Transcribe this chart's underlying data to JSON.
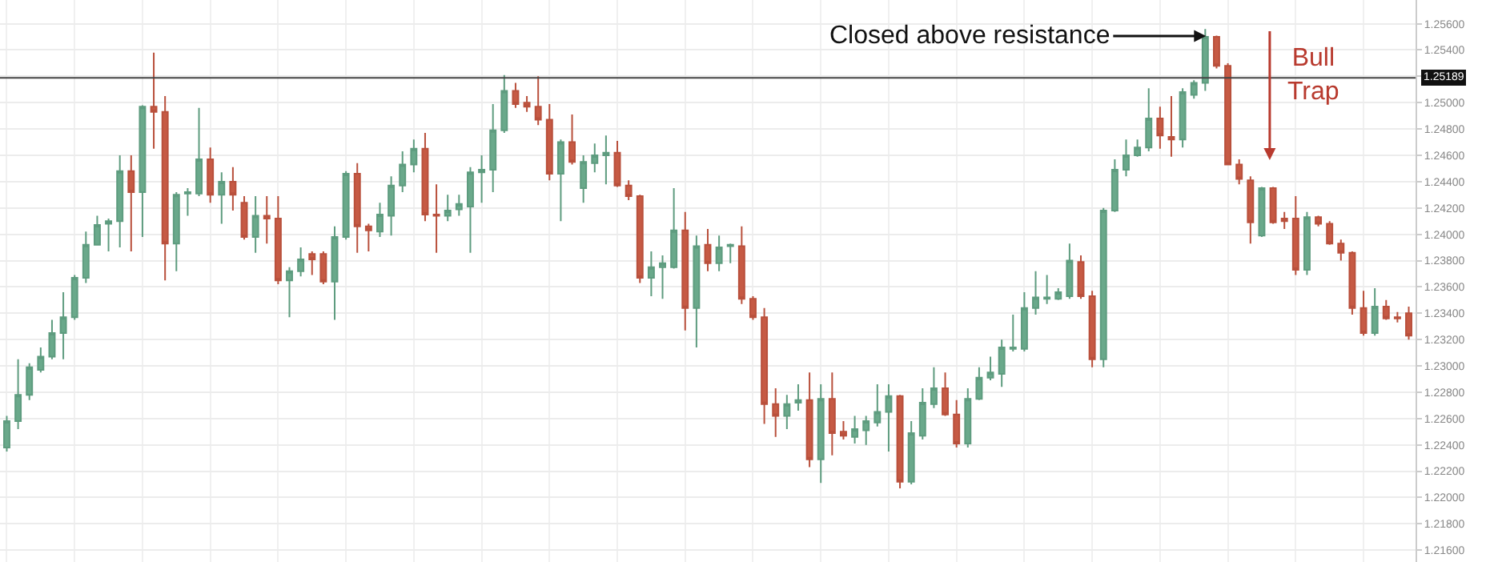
{
  "chart_data": {
    "type": "candlestick",
    "annotations": [
      "Closed above resistance",
      "Bull Trap"
    ],
    "categories": [
      null,
      null,
      null,
      null,
      null,
      null,
      null,
      null,
      null,
      null,
      null,
      null,
      null,
      null,
      null,
      null,
      null,
      null,
      null,
      null,
      null,
      null,
      null,
      null,
      null,
      null,
      null,
      null,
      null,
      null,
      null,
      null,
      null,
      null,
      null,
      null,
      null,
      null,
      null,
      null,
      null,
      null,
      null,
      null,
      null,
      null,
      null,
      null,
      null,
      null,
      null,
      null,
      null,
      null,
      null,
      null,
      null,
      null,
      null,
      null,
      null,
      null,
      null,
      null,
      null,
      null,
      null,
      null,
      null,
      null,
      null,
      null,
      null,
      null,
      null,
      null,
      null,
      null,
      null,
      null,
      null,
      null,
      null,
      null,
      null,
      null,
      null,
      null,
      null,
      null,
      null,
      null,
      null,
      null,
      null,
      null,
      null,
      null,
      null,
      null,
      null,
      null,
      null,
      null,
      null,
      null,
      null,
      null,
      null,
      null,
      null,
      null,
      null,
      null,
      null,
      null,
      null,
      null,
      null,
      null,
      null,
      null,
      null,
      null,
      null
    ],
    "ohlc": [
      [
        1.2238,
        1.2262,
        1.2235,
        1.2258
      ],
      [
        1.2258,
        1.2305,
        1.2252,
        1.2278
      ],
      [
        1.2278,
        1.2302,
        1.2274,
        1.2299
      ],
      [
        1.2297,
        1.2314,
        1.2295,
        1.2307
      ],
      [
        1.2307,
        1.2335,
        1.2305,
        1.2325
      ],
      [
        1.2325,
        1.2356,
        1.2305,
        1.2337
      ],
      [
        1.2337,
        1.2369,
        1.2335,
        1.2367
      ],
      [
        1.2367,
        1.2402,
        1.2363,
        1.2392
      ],
      [
        1.2392,
        1.2414,
        1.2392,
        1.2407
      ],
      [
        1.2408,
        1.2412,
        1.2387,
        1.241
      ],
      [
        1.241,
        1.246,
        1.239,
        1.2448
      ],
      [
        1.2448,
        1.246,
        1.2387,
        1.2432
      ],
      [
        1.2432,
        1.2498,
        1.2398,
        1.2497
      ],
      [
        1.2497,
        1.2538,
        1.2465,
        1.2493
      ],
      [
        1.2493,
        1.2505,
        1.2365,
        1.2393
      ],
      [
        1.2393,
        1.2432,
        1.2372,
        1.243
      ],
      [
        1.2431,
        1.2435,
        1.2414,
        1.2432
      ],
      [
        1.2431,
        1.2496,
        1.2429,
        1.2457
      ],
      [
        1.2457,
        1.2466,
        1.2424,
        1.243
      ],
      [
        1.243,
        1.2447,
        1.2408,
        1.244
      ],
      [
        1.244,
        1.2451,
        1.2418,
        1.243
      ],
      [
        1.2424,
        1.2429,
        1.2396,
        1.2398
      ],
      [
        1.2398,
        1.2429,
        1.2386,
        1.2414
      ],
      [
        1.2414,
        1.2429,
        1.2393,
        1.2412
      ],
      [
        1.2412,
        1.2429,
        1.2362,
        1.2365
      ],
      [
        1.2365,
        1.2375,
        1.2337,
        1.2372
      ],
      [
        1.2372,
        1.239,
        1.2368,
        1.2381
      ],
      [
        1.2385,
        1.2387,
        1.2369,
        1.2381
      ],
      [
        1.2385,
        1.2387,
        1.2362,
        1.2364
      ],
      [
        1.2364,
        1.2406,
        1.2335,
        1.2398
      ],
      [
        1.2398,
        1.2448,
        1.2396,
        1.2446
      ],
      [
        1.2446,
        1.2454,
        1.2386,
        1.2406
      ],
      [
        1.2406,
        1.2408,
        1.2387,
        1.2403
      ],
      [
        1.2402,
        1.2424,
        1.2398,
        1.2415
      ],
      [
        1.2414,
        1.2444,
        1.2399,
        1.2437
      ],
      [
        1.2437,
        1.2463,
        1.2432,
        1.2453
      ],
      [
        1.2453,
        1.2472,
        1.2447,
        1.2465
      ],
      [
        1.2465,
        1.2477,
        1.241,
        1.2415
      ],
      [
        1.2415,
        1.2438,
        1.2386,
        1.2414
      ],
      [
        1.2414,
        1.243,
        1.241,
        1.2418
      ],
      [
        1.2419,
        1.243,
        1.2414,
        1.2423
      ],
      [
        1.2421,
        1.2451,
        1.2386,
        1.2447
      ],
      [
        1.2447,
        1.246,
        1.2424,
        1.2449
      ],
      [
        1.2449,
        1.2499,
        1.2432,
        1.2479
      ],
      [
        1.2479,
        1.2521,
        1.2477,
        1.2509
      ],
      [
        1.2509,
        1.2515,
        1.2496,
        1.2499
      ],
      [
        1.25,
        1.2505,
        1.2493,
        1.2497
      ],
      [
        1.2497,
        1.252,
        1.2483,
        1.2487
      ],
      [
        1.2487,
        1.2499,
        1.2441,
        1.2446
      ],
      [
        1.2446,
        1.2472,
        1.241,
        1.247
      ],
      [
        1.247,
        1.2491,
        1.2453,
        1.2455
      ],
      [
        1.2435,
        1.246,
        1.2424,
        1.2455
      ],
      [
        1.2454,
        1.2469,
        1.2447,
        1.246
      ],
      [
        1.246,
        1.2475,
        1.2438,
        1.2462
      ],
      [
        1.2462,
        1.2471,
        1.2436,
        1.2437
      ],
      [
        1.2437,
        1.2441,
        1.2426,
        1.2429
      ],
      [
        1.2429,
        1.243,
        1.2363,
        1.2367
      ],
      [
        1.2367,
        1.2387,
        1.2353,
        1.2375
      ],
      [
        1.2375,
        1.2384,
        1.2351,
        1.2378
      ],
      [
        1.2375,
        1.2435,
        1.2374,
        1.2403
      ],
      [
        1.2403,
        1.2417,
        1.2327,
        1.2344
      ],
      [
        1.2344,
        1.2399,
        1.2314,
        1.2391
      ],
      [
        1.2392,
        1.2404,
        1.2372,
        1.2378
      ],
      [
        1.2378,
        1.2399,
        1.2372,
        1.239
      ],
      [
        1.2391,
        1.2393,
        1.2378,
        1.2392
      ],
      [
        1.2391,
        1.2406,
        1.2347,
        1.2351
      ],
      [
        1.2351,
        1.2353,
        1.2335,
        1.2337
      ],
      [
        1.2337,
        1.2344,
        1.2256,
        1.2271
      ],
      [
        1.2271,
        1.2283,
        1.2246,
        1.2262
      ],
      [
        1.2262,
        1.2278,
        1.2252,
        1.2271
      ],
      [
        1.2272,
        1.2286,
        1.2266,
        1.2274
      ],
      [
        1.2274,
        1.2295,
        1.2223,
        1.2229
      ],
      [
        1.2229,
        1.2286,
        1.2211,
        1.2275
      ],
      [
        1.2275,
        1.2295,
        1.2232,
        1.2249
      ],
      [
        1.225,
        1.2258,
        1.2244,
        1.2247
      ],
      [
        1.2246,
        1.2262,
        1.2241,
        1.2252
      ],
      [
        1.2251,
        1.2262,
        1.224,
        1.2258
      ],
      [
        1.2257,
        1.2286,
        1.2254,
        1.2265
      ],
      [
        1.2265,
        1.2286,
        1.2235,
        1.2277
      ],
      [
        1.2277,
        1.2278,
        1.2207,
        1.2212
      ],
      [
        1.2212,
        1.2258,
        1.221,
        1.2249
      ],
      [
        1.2247,
        1.2283,
        1.2244,
        1.2272
      ],
      [
        1.2271,
        1.2299,
        1.2268,
        1.2283
      ],
      [
        1.2283,
        1.2295,
        1.2262,
        1.2263
      ],
      [
        1.2263,
        1.2274,
        1.2238,
        1.2241
      ],
      [
        1.2241,
        1.2283,
        1.2238,
        1.2275
      ],
      [
        1.2275,
        1.2299,
        1.2274,
        1.2291
      ],
      [
        1.2291,
        1.2307,
        1.2289,
        1.2295
      ],
      [
        1.2294,
        1.232,
        1.2284,
        1.2314
      ],
      [
        1.2313,
        1.2339,
        1.2311,
        1.2314
      ],
      [
        1.2313,
        1.2356,
        1.2311,
        1.2344
      ],
      [
        1.2344,
        1.2372,
        1.2339,
        1.2352
      ],
      [
        1.2351,
        1.2369,
        1.2347,
        1.2352
      ],
      [
        1.2351,
        1.2359,
        1.235,
        1.2356
      ],
      [
        1.2353,
        1.2393,
        1.2351,
        1.238
      ],
      [
        1.2379,
        1.2384,
        1.2351,
        1.2353
      ],
      [
        1.2353,
        1.2357,
        1.2299,
        1.2305
      ],
      [
        1.2305,
        1.242,
        1.2299,
        1.2418
      ],
      [
        1.2418,
        1.2457,
        1.2417,
        1.2449
      ],
      [
        1.2449,
        1.2472,
        1.2444,
        1.246
      ],
      [
        1.246,
        1.2472,
        1.2459,
        1.2466
      ],
      [
        1.2466,
        1.2511,
        1.2463,
        1.2488
      ],
      [
        1.2488,
        1.2497,
        1.2465,
        1.2475
      ],
      [
        1.2474,
        1.2505,
        1.2459,
        1.2472
      ],
      [
        1.2472,
        1.2511,
        1.2466,
        1.2508
      ],
      [
        1.2506,
        1.2517,
        1.2503,
        1.2515
      ],
      [
        1.2515,
        1.2556,
        1.2509,
        1.255
      ],
      [
        1.255,
        1.2551,
        1.2526,
        1.2528
      ],
      [
        1.2528,
        1.253,
        1.2453,
        1.2453
      ],
      [
        1.2453,
        1.2457,
        1.2438,
        1.2442
      ],
      [
        1.2441,
        1.2444,
        1.2393,
        1.2409
      ],
      [
        1.2399,
        1.2436,
        1.2398,
        1.2435
      ],
      [
        1.2435,
        1.2436,
        1.2408,
        1.2409
      ],
      [
        1.2412,
        1.2417,
        1.2404,
        1.241
      ],
      [
        1.2412,
        1.2429,
        1.2369,
        1.2373
      ],
      [
        1.2373,
        1.2417,
        1.2369,
        1.2413
      ],
      [
        1.2413,
        1.2414,
        1.2406,
        1.2408
      ],
      [
        1.2408,
        1.241,
        1.2392,
        1.2393
      ],
      [
        1.2393,
        1.2396,
        1.238,
        1.2386
      ],
      [
        1.2386,
        1.2387,
        1.2339,
        1.2344
      ],
      [
        1.2344,
        1.2357,
        1.2323,
        1.2325
      ],
      [
        1.2325,
        1.2359,
        1.2323,
        1.2345
      ],
      [
        1.2345,
        1.235,
        1.2335,
        1.2336
      ],
      [
        1.2337,
        1.2341,
        1.2333,
        1.2336
      ],
      [
        1.234,
        1.2345,
        1.232,
        1.2323
      ]
    ],
    "ylim": [
      1.2151,
      1.2578
    ],
    "yticks": [
      {
        "value": 1.216,
        "label": "1.21600"
      },
      {
        "value": 1.218,
        "label": "1.21800"
      },
      {
        "value": 1.22,
        "label": "1.22000"
      },
      {
        "value": 1.222,
        "label": "1.22200"
      },
      {
        "value": 1.224,
        "label": "1.22400"
      },
      {
        "value": 1.226,
        "label": "1.22600"
      },
      {
        "value": 1.228,
        "label": "1.22800"
      },
      {
        "value": 1.23,
        "label": "1.23000"
      },
      {
        "value": 1.232,
        "label": "1.23200"
      },
      {
        "value": 1.234,
        "label": "1.23400"
      },
      {
        "value": 1.236,
        "label": "1.23600"
      },
      {
        "value": 1.238,
        "label": "1.23800"
      },
      {
        "value": 1.24,
        "label": "1.24000"
      },
      {
        "value": 1.242,
        "label": "1.24200"
      },
      {
        "value": 1.244,
        "label": "1.24400"
      },
      {
        "value": 1.246,
        "label": "1.24600"
      },
      {
        "value": 1.248,
        "label": "1.24800"
      },
      {
        "value": 1.25,
        "label": "1.25000"
      },
      {
        "value": 1.252,
        "label": null
      },
      {
        "value": 1.254,
        "label": "1.25400"
      },
      {
        "value": 1.256,
        "label": "1.25600"
      }
    ],
    "ref_lines": [
      {
        "axis": "y",
        "value": 1.25189,
        "label": "1.25189"
      }
    ],
    "grid": true,
    "tick_labels": "y",
    "legend": false
  }
}
